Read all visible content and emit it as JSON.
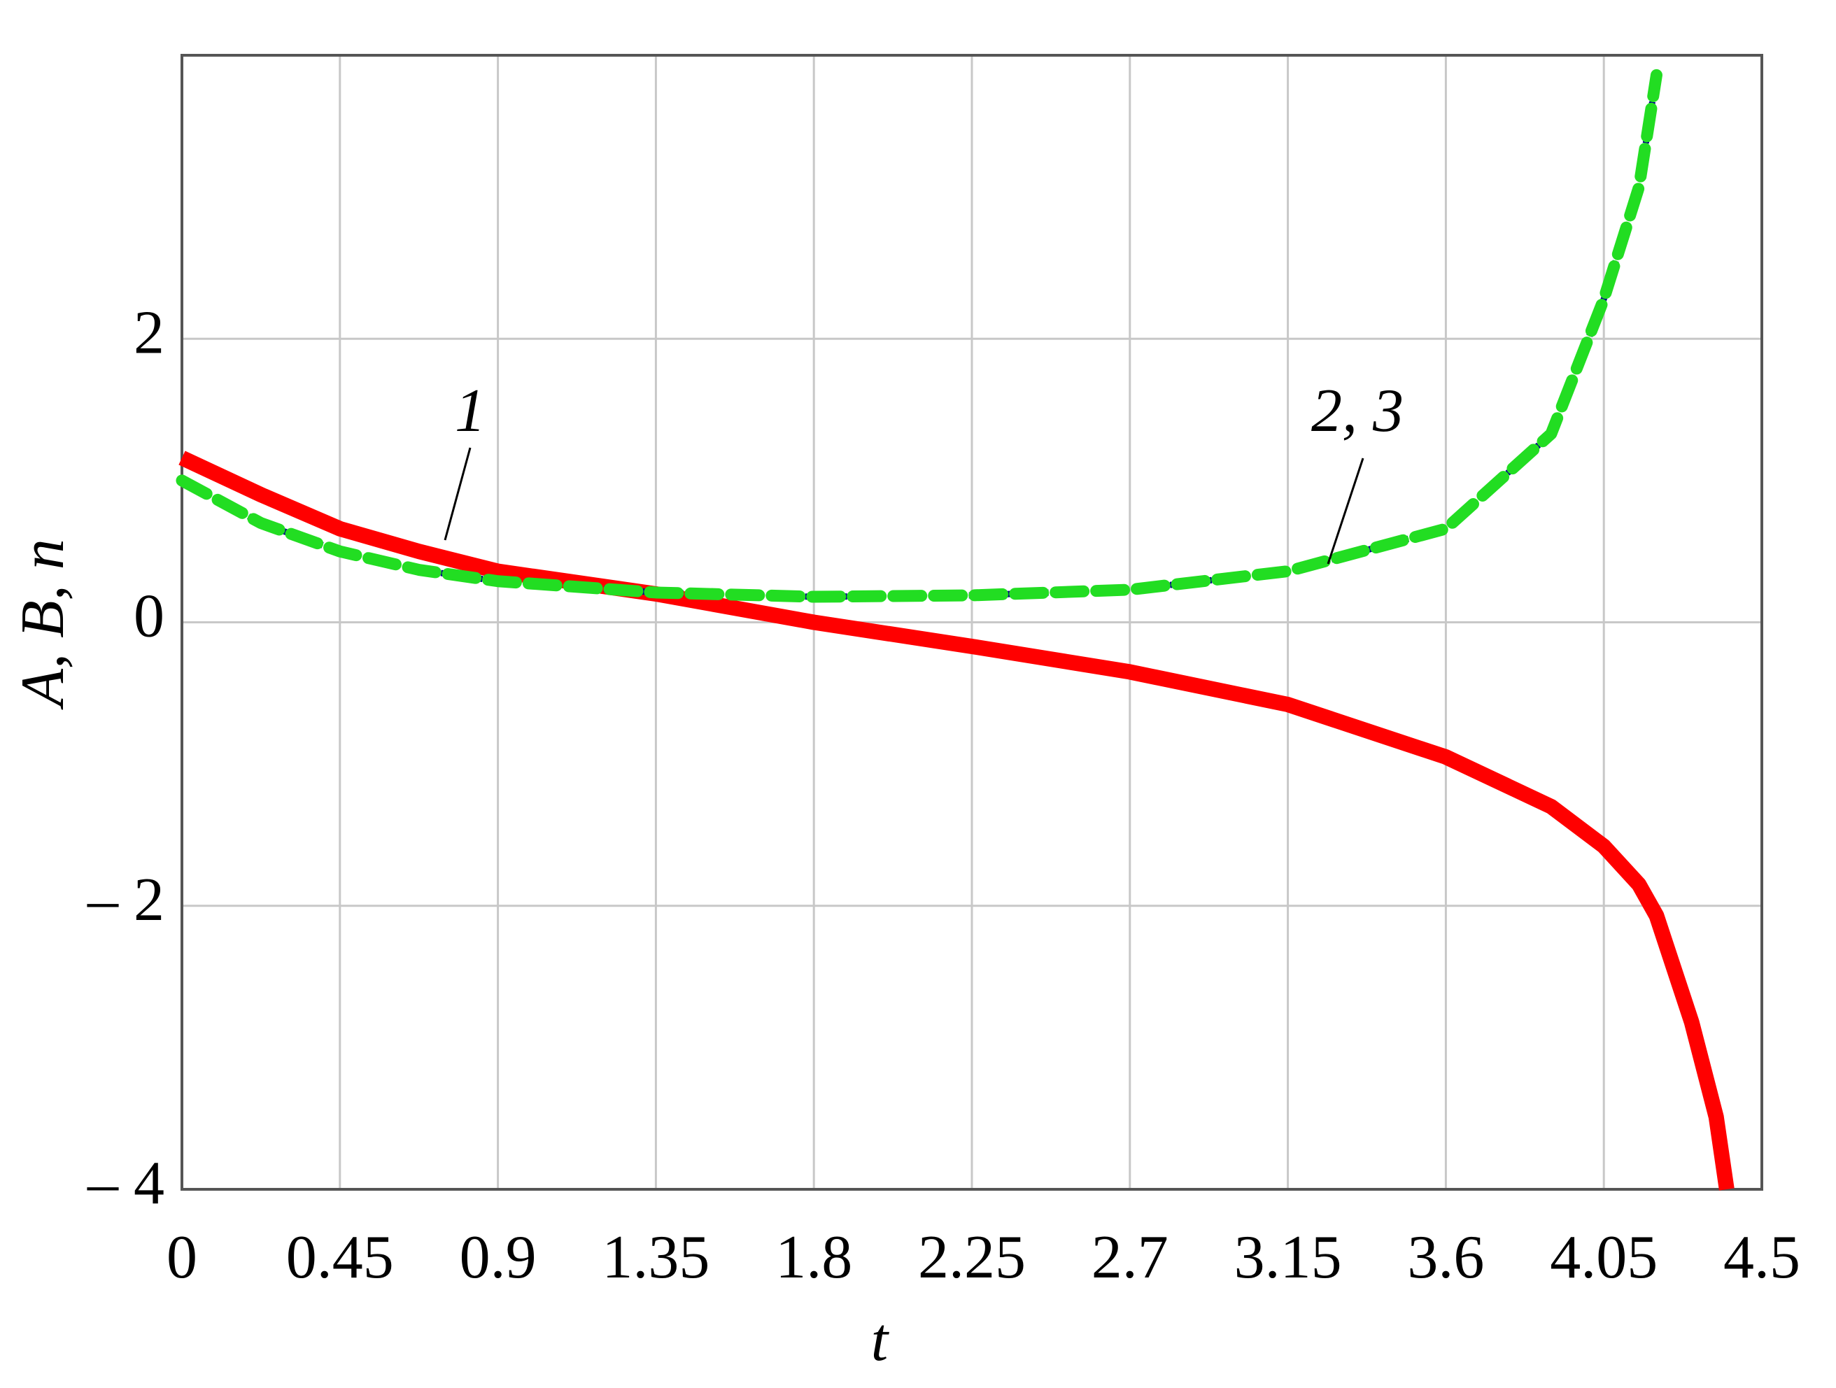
{
  "chart_data": {
    "type": "line",
    "x_label": "t",
    "y_label": "A, B, n",
    "x": [
      0,
      0.225,
      0.45,
      0.675,
      0.9,
      1.35,
      1.8,
      2.25,
      2.7,
      3.15,
      3.6,
      3.9,
      4.05,
      4.15,
      4.2,
      4.3,
      4.37,
      4.4
    ],
    "series": [
      {
        "color": "#ff0000",
        "values": [
          1.16,
          0.9,
          0.66,
          0.5,
          0.36,
          0.2,
          0,
          -0.17,
          -0.35,
          -0.58,
          -0.95,
          -1.3,
          -1.58,
          -1.85,
          -2.07,
          -2.82,
          -3.49,
          -4
        ]
      },
      {
        "color": "#00008b",
        "values": [
          1.0,
          0.7,
          0.5,
          0.37,
          0.29,
          0.21,
          0.18,
          0.19,
          0.23,
          0.36,
          0.66,
          1.33,
          2.28,
          3.07,
          3.86,
          null,
          null,
          null
        ]
      },
      {
        "color": "#22dd22",
        "values": [
          1.0,
          0.7,
          0.5,
          0.37,
          0.29,
          0.21,
          0.18,
          0.19,
          0.23,
          0.36,
          0.66,
          1.33,
          2.28,
          3.07,
          3.86,
          null,
          null,
          null
        ]
      }
    ],
    "annotations": [
      "1",
      "2, 3"
    ],
    "xlim": [
      0,
      4.5
    ],
    "ylim": [
      -4,
      4
    ],
    "xticks": [
      0,
      0.45,
      0.9,
      1.35,
      1.8,
      2.25,
      2.7,
      3.15,
      3.6,
      4.05,
      4.5
    ],
    "yticks": [
      {
        "value": -4,
        "label": "– 4"
      },
      {
        "value": -2,
        "label": "– 2"
      },
      0,
      2
    ],
    "grid": true
  }
}
